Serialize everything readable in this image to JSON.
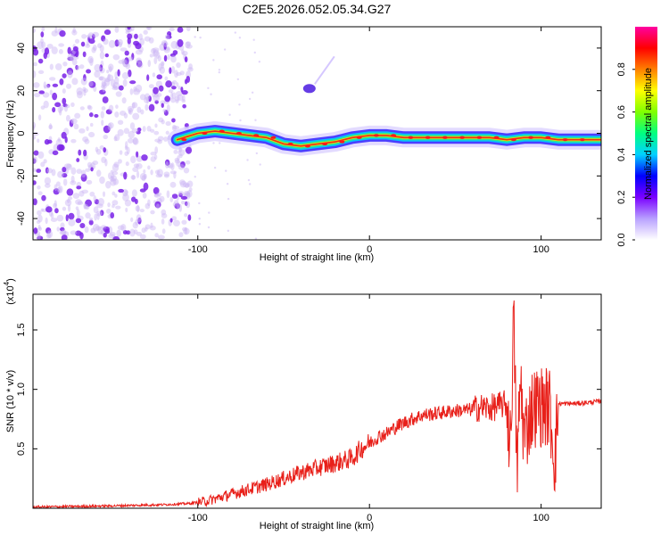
{
  "title": "C2E5.2026.052.05.34.G27",
  "chart_data": [
    {
      "type": "heatmap",
      "name": "spectrogram",
      "xlabel": "Height of straight line (km)",
      "ylabel": "Frequency (Hz)",
      "xlim": [
        -196,
        135
      ],
      "ylim": [
        -50,
        50
      ],
      "x_ticks": [
        -100,
        0,
        100
      ],
      "y_ticks": [
        -40,
        -20,
        0,
        20,
        40
      ],
      "noise_region_x": [
        -196,
        -104
      ],
      "carrier_trace": {
        "x": [
          -112,
          -100,
          -90,
          -80,
          -70,
          -60,
          -50,
          -40,
          -30,
          -20,
          -10,
          0,
          10,
          20,
          30,
          40,
          50,
          60,
          70,
          80,
          90,
          100,
          110,
          120,
          135
        ],
        "y": [
          -3,
          0,
          1,
          0,
          -1,
          -2,
          -5,
          -6,
          -5,
          -4,
          -2,
          -1,
          -1,
          -2,
          -2,
          -2,
          -2,
          -2,
          -2,
          -3,
          -2,
          -2,
          -3,
          -3,
          -3
        ]
      },
      "feature_blob": {
        "x": -35,
        "y": 21
      },
      "colorbar": {
        "label": "Normalized spectral amplitude",
        "range": [
          0,
          1
        ],
        "ticks": [
          "0.0",
          "0.2",
          "0.4",
          "0.6",
          "0.8"
        ],
        "tick_values": [
          0,
          0.2,
          0.4,
          0.6,
          0.8
        ],
        "colors": [
          "#ffffff",
          "#b8a0ff",
          "#7a00ff",
          "#0000ff",
          "#00d0ff",
          "#00ff80",
          "#80ff00",
          "#ffff00",
          "#ff8000",
          "#ff0000",
          "#ff00a0"
        ]
      },
      "colors": {
        "noise": "#7a22e8",
        "trace_low": "#3a2cff",
        "trace_mid": "#2ee88a",
        "trace_core": "#e8301a"
      }
    },
    {
      "type": "line",
      "name": "snr",
      "xlabel": "Height of straight line (km)",
      "ylabel": "SNR (10 * v/v)",
      "y_multiplier": "(x10",
      "y_multiplier_exp": "4",
      "y_multiplier_close": ")",
      "xlim": [
        -196,
        135
      ],
      "ylim": [
        0,
        1.8
      ],
      "x_ticks": [
        -100,
        0,
        100
      ],
      "y_ticks": [
        "0.5",
        "1.0",
        "1.5"
      ],
      "y_tick_values": [
        0.5,
        1.0,
        1.5
      ],
      "series": [
        {
          "name": "SNR",
          "color": "#e8201a",
          "x": [
            -196,
            -150,
            -120,
            -105,
            -95,
            -90,
            -80,
            -70,
            -60,
            -50,
            -40,
            -30,
            -20,
            -10,
            -5,
            0,
            5,
            10,
            15,
            20,
            30,
            40,
            50,
            60,
            65,
            70,
            75,
            80,
            82,
            84,
            86,
            88,
            90,
            95,
            100,
            105,
            108,
            110,
            120,
            135
          ],
          "y": [
            0.01,
            0.02,
            0.03,
            0.04,
            0.06,
            0.08,
            0.12,
            0.16,
            0.2,
            0.25,
            0.3,
            0.34,
            0.38,
            0.42,
            0.5,
            0.55,
            0.6,
            0.63,
            0.68,
            0.72,
            0.78,
            0.8,
            0.82,
            0.83,
            0.85,
            0.84,
            0.86,
            0.88,
            0.5,
            1.6,
            0.3,
            1.1,
            0.6,
            0.85,
            0.86,
            0.85,
            0.4,
            0.88,
            0.88,
            0.9
          ]
        }
      ]
    }
  ]
}
